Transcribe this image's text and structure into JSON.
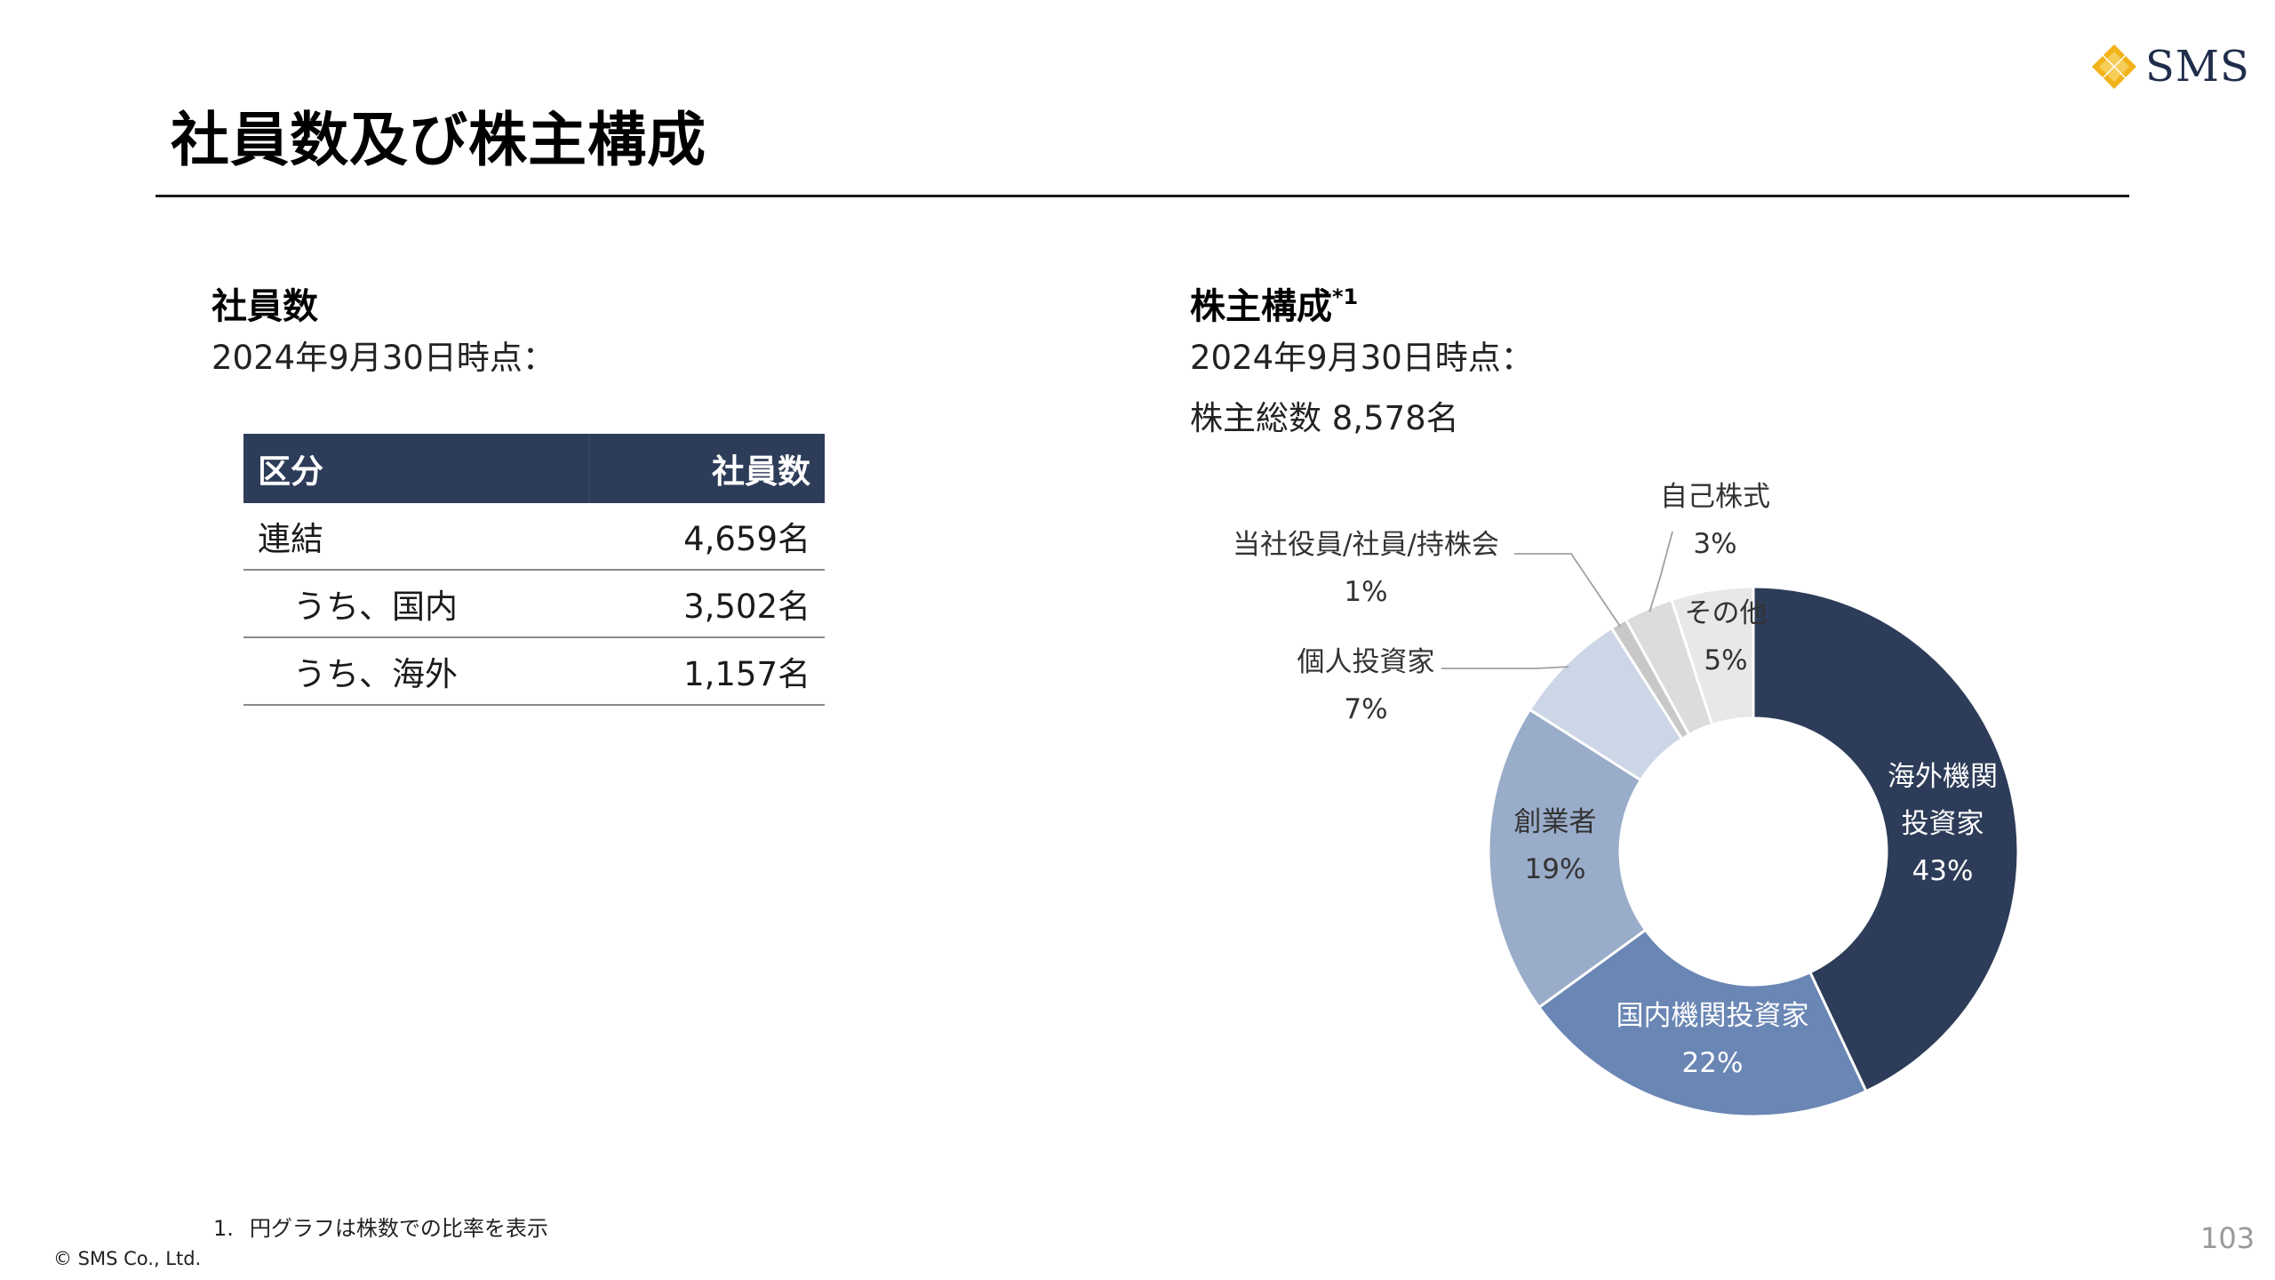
{
  "header": {
    "title": "社員数及び株主構成",
    "logo_text": "SMS",
    "brand_color": "#f2b21a"
  },
  "employees": {
    "heading": "社員数",
    "as_of": "2024年9月30日時点：",
    "table": {
      "headers": [
        "区分",
        "社員数"
      ],
      "rows": [
        {
          "label": "連結",
          "value": "4,659名"
        },
        {
          "label": "うち、国内",
          "value": "3,502名"
        },
        {
          "label": "うち、海外",
          "value": "1,157名"
        }
      ]
    }
  },
  "shareholders": {
    "heading": "株主構成",
    "heading_note": "*1",
    "as_of": "2024年9月30日時点：",
    "total": "株主総数 8,578名"
  },
  "chart_data": {
    "type": "pie",
    "variant": "donut",
    "categories": [
      "海外機関投資家",
      "国内機関投資家",
      "創業者",
      "個人投資家",
      "当社役員/社員/持株会",
      "自己株式",
      "その他"
    ],
    "values": [
      43,
      22,
      19,
      7,
      1,
      3,
      5
    ],
    "value_labels": [
      "43%",
      "22%",
      "19%",
      "7%",
      "1%",
      "3%",
      "5%"
    ],
    "label_lines": [
      [
        "海外機関",
        "投資家"
      ],
      [
        "国内機関投資家"
      ],
      [
        "創業者"
      ],
      [
        "個人投資家"
      ],
      [
        "当社役員/社員/持株会"
      ],
      [
        "自己株式"
      ],
      [
        "その他"
      ]
    ],
    "colors": [
      "#2d3c58",
      "#6a86b4",
      "#99acc9",
      "#ccd6e6",
      "#c8c8c8",
      "#dcdcdc",
      "#e8e8e8"
    ],
    "start": "12 o'clock, clockwise"
  },
  "footer": {
    "footnote_number": "1.",
    "footnote_text": "円グラフは株数での比率を表示",
    "copyright": "© SMS Co., Ltd.",
    "page_number": "103"
  }
}
